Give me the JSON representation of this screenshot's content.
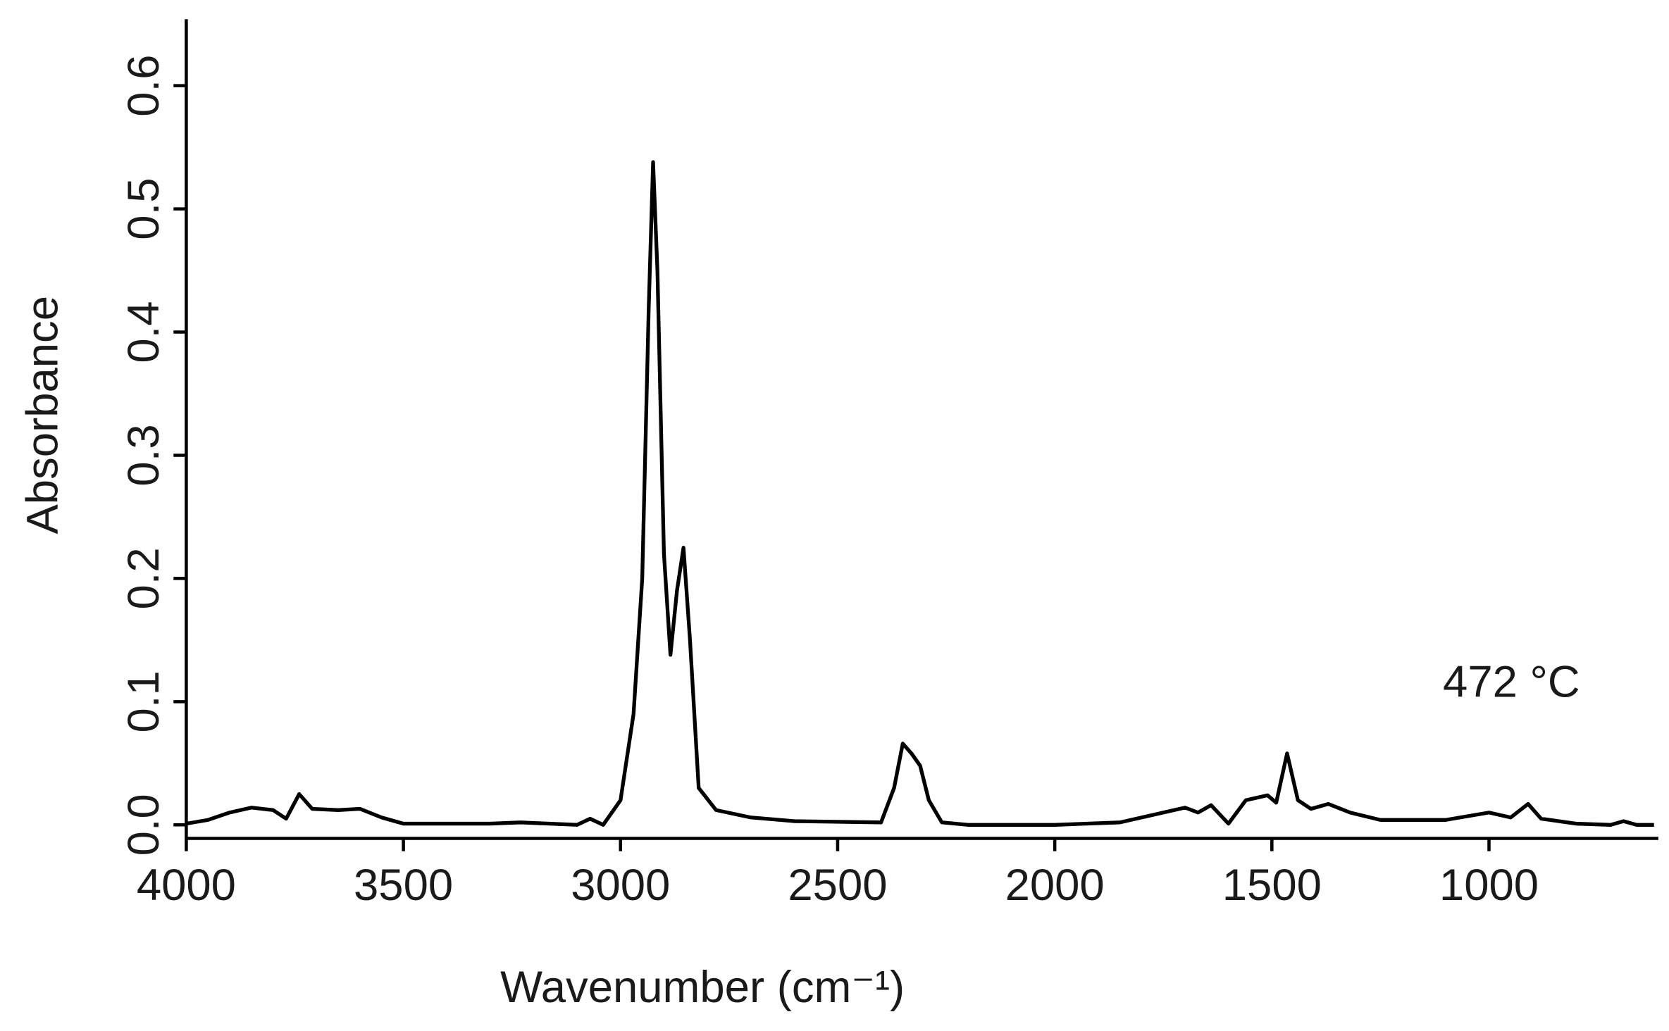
{
  "chart_data": {
    "type": "line",
    "xlabel": "Wavenumber (cm⁻¹)",
    "ylabel": "Absorbance",
    "annotation": "472 °C",
    "x": [
      4000,
      3950,
      3900,
      3850,
      3800,
      3770,
      3740,
      3710,
      3650,
      3600,
      3550,
      3500,
      3300,
      3230,
      3100,
      3070,
      3040,
      3000,
      2970,
      2950,
      2935,
      2925,
      2915,
      2900,
      2885,
      2870,
      2855,
      2840,
      2820,
      2780,
      2700,
      2600,
      2400,
      2370,
      2350,
      2330,
      2310,
      2290,
      2260,
      2200,
      2000,
      1850,
      1750,
      1700,
      1670,
      1640,
      1600,
      1560,
      1510,
      1490,
      1465,
      1440,
      1410,
      1370,
      1320,
      1250,
      1100,
      1000,
      950,
      910,
      880,
      800,
      720,
      690,
      660,
      620
    ],
    "series": [
      {
        "color": "#000000",
        "values": [
          0.001,
          0.004,
          0.01,
          0.014,
          0.012,
          0.005,
          0.025,
          0.013,
          0.012,
          0.013,
          0.006,
          0.001,
          0.001,
          0.002,
          0.0,
          0.005,
          0.0,
          0.02,
          0.09,
          0.2,
          0.42,
          0.538,
          0.45,
          0.22,
          0.138,
          0.19,
          0.225,
          0.15,
          0.03,
          0.012,
          0.006,
          0.003,
          0.002,
          0.03,
          0.066,
          0.058,
          0.048,
          0.02,
          0.002,
          0.0,
          0.0,
          0.002,
          0.01,
          0.014,
          0.01,
          0.016,
          0.001,
          0.02,
          0.024,
          0.018,
          0.058,
          0.02,
          0.013,
          0.017,
          0.01,
          0.004,
          0.004,
          0.01,
          0.006,
          0.017,
          0.005,
          0.001,
          0.0,
          0.003,
          0.0,
          0.0
        ]
      }
    ],
    "xlim": [
      4000,
      610
    ],
    "xticks": [
      4000,
      3500,
      3000,
      2500,
      2000,
      1500,
      1000
    ],
    "ylim": [
      -0.011,
      0.654
    ],
    "yticks": [
      {
        "value": 0,
        "label": "0.0"
      },
      0.1,
      0.2,
      0.3,
      0.4,
      0.5,
      0.6
    ]
  }
}
